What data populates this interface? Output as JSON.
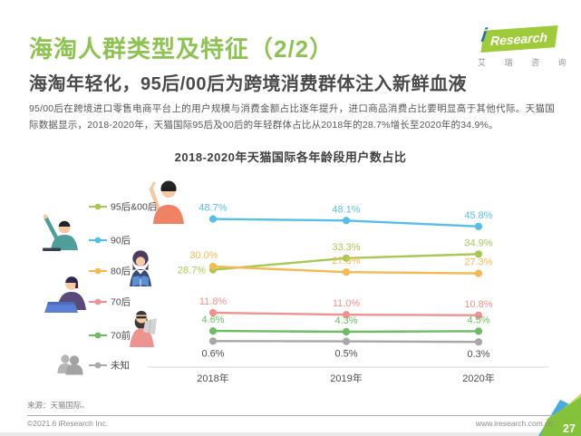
{
  "page": {
    "page_number": "27"
  },
  "header": {
    "title": "海淘人群类型及特征（2/2）",
    "subtitle": "海淘年轻化，95后/00后为跨境消费群体注入新鲜血液",
    "paragraph": "95/00后在跨境进口零售电商平台上的用户规模与消费金额占比逐年提升，进口商品消费占比要明显高于其他代际。天猫国际数据显示，2018-2020年，天猫国际95后及00后的年轻群体占比从2018年的28.7%增长至2020年的34.9%。"
  },
  "logo": {
    "i": "i",
    "brand": "Research",
    "chinese": "艾 瑞 咨 询"
  },
  "footer": {
    "source": "来源：天猫国际。",
    "copyright": "©2021.6 iResearch Inc.",
    "website": "www.iresearch.com.cn"
  },
  "illustrations": [
    "man-with-sunglasses",
    "pointing-teacher-man",
    "reading-woman",
    "laptop-man",
    "newspaper-beard-man",
    "unknown-people-silhouette"
  ],
  "chart_data": {
    "type": "line",
    "title": "2018-2020年天猫国际各年龄段用户数占比",
    "categories": [
      "2018年",
      "2019年",
      "2020年"
    ],
    "unit": "%",
    "series": [
      {
        "name": "95后&00后",
        "color": "#A8C854",
        "values": [
          28.7,
          33.3,
          34.9
        ]
      },
      {
        "name": "90后",
        "color": "#56BFE8",
        "values": [
          48.7,
          48.1,
          45.8
        ]
      },
      {
        "name": "80后",
        "color": "#F4BA4F",
        "values": [
          30.0,
          27.8,
          27.3
        ]
      },
      {
        "name": "70后",
        "color": "#F09290",
        "values": [
          11.8,
          11.0,
          10.8
        ]
      },
      {
        "name": "70前",
        "color": "#6DBE63",
        "values": [
          4.6,
          4.3,
          4.5
        ]
      },
      {
        "name": "未知",
        "color": "#A8A8A8",
        "values": [
          0.6,
          0.5,
          0.3
        ],
        "label_position": "below",
        "label_color": "#4F4F4F"
      }
    ],
    "ylim": [
      0,
      55
    ],
    "grid": false,
    "legend_position": "left"
  }
}
